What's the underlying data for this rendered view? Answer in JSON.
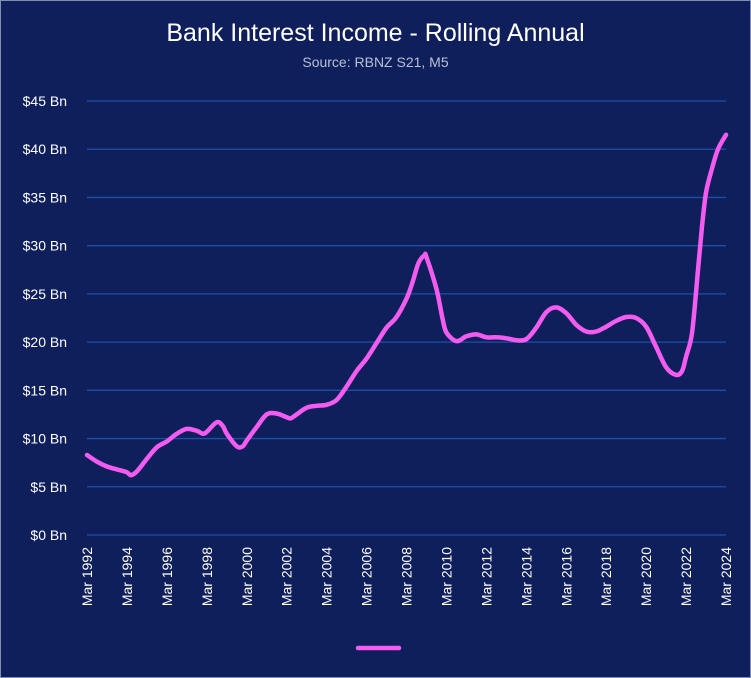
{
  "colors": {
    "background": "#0e1f5b",
    "grid": "#1e4fa8",
    "line": "#f45cf0",
    "text": "#ffffff"
  },
  "chart_data": {
    "type": "line",
    "title": "Bank Interest Income - Rolling Annual",
    "subtitle": "Source: RBNZ S21, M5",
    "xlabel": "",
    "ylabel": "",
    "ylim": [
      0,
      45
    ],
    "yticks": [
      {
        "value": 0,
        "label": "$0 Bn"
      },
      {
        "value": 5,
        "label": "$5 Bn"
      },
      {
        "value": 10,
        "label": "$10 Bn"
      },
      {
        "value": 15,
        "label": "$15 Bn"
      },
      {
        "value": 20,
        "label": "$20 Bn"
      },
      {
        "value": 25,
        "label": "$25 Bn"
      },
      {
        "value": 30,
        "label": "$30 Bn"
      },
      {
        "value": 35,
        "label": "$35 Bn"
      },
      {
        "value": 40,
        "label": "$40 Bn"
      },
      {
        "value": 45,
        "label": "$45 Bn"
      }
    ],
    "xlim": [
      1992,
      2024
    ],
    "xticks": [
      {
        "value": 1992,
        "label": "Mar 1992"
      },
      {
        "value": 1994,
        "label": "Mar 1994"
      },
      {
        "value": 1996,
        "label": "Mar 1996"
      },
      {
        "value": 1998,
        "label": "Mar 1998"
      },
      {
        "value": 2000,
        "label": "Mar 2000"
      },
      {
        "value": 2002,
        "label": "Mar 2002"
      },
      {
        "value": 2004,
        "label": "Mar 2004"
      },
      {
        "value": 2006,
        "label": "Mar 2006"
      },
      {
        "value": 2008,
        "label": "Mar 2008"
      },
      {
        "value": 2010,
        "label": "Mar 2010"
      },
      {
        "value": 2012,
        "label": "Mar 2012"
      },
      {
        "value": 2014,
        "label": "Mar 2014"
      },
      {
        "value": 2016,
        "label": "Mar 2016"
      },
      {
        "value": 2018,
        "label": "Mar 2018"
      },
      {
        "value": 2020,
        "label": "Mar 2020"
      },
      {
        "value": 2022,
        "label": "Mar 2022"
      },
      {
        "value": 2024,
        "label": "Mar 2024"
      }
    ],
    "grid": true,
    "legend": "bottom",
    "series": [
      {
        "x": [
          1992,
          1992.5,
          1993,
          1993.5,
          1994,
          1994.2,
          1994.5,
          1995,
          1995.5,
          1996,
          1996.5,
          1997,
          1997.5,
          1997.8,
          1998,
          1998.5,
          1998.8,
          1999,
          1999.5,
          1999.8,
          2000,
          2000.5,
          2001,
          2001.5,
          2002,
          2002.2,
          2002.5,
          2003,
          2003.5,
          2004,
          2004.5,
          2005,
          2005.5,
          2006,
          2006.5,
          2007,
          2007.5,
          2008,
          2008.3,
          2008.6,
          2008.9,
          2009,
          2009.5,
          2009.8,
          2010,
          2010.5,
          2011,
          2011.5,
          2012,
          2012.5,
          2013,
          2013.5,
          2014,
          2014.5,
          2015,
          2015.5,
          2016,
          2016.5,
          2017,
          2017.5,
          2018,
          2018.5,
          2019,
          2019.5,
          2020,
          2020.5,
          2021,
          2021.5,
          2021.8,
          2022,
          2022.3,
          2022.6,
          2022.8,
          2023,
          2023.3,
          2023.6,
          2024
        ],
        "values": [
          8.3,
          7.6,
          7.1,
          6.8,
          6.5,
          6.2,
          6.6,
          7.9,
          9.1,
          9.7,
          10.5,
          11.0,
          10.8,
          10.5,
          10.7,
          11.7,
          11.3,
          10.5,
          9.2,
          9.2,
          9.8,
          11.2,
          12.5,
          12.6,
          12.2,
          12.1,
          12.5,
          13.2,
          13.4,
          13.5,
          14.0,
          15.4,
          17.0,
          18.3,
          19.9,
          21.5,
          22.6,
          24.5,
          26.2,
          28.2,
          29.0,
          28.8,
          25.5,
          22.5,
          21.0,
          20.1,
          20.6,
          20.8,
          20.5,
          20.5,
          20.4,
          20.2,
          20.3,
          21.5,
          23.1,
          23.6,
          23.0,
          21.8,
          21.1,
          21.1,
          21.6,
          22.2,
          22.6,
          22.5,
          21.6,
          19.5,
          17.4,
          16.6,
          17.0,
          18.5,
          21.0,
          27.5,
          32.0,
          35.5,
          38.0,
          40.0,
          41.5
        ]
      }
    ]
  }
}
